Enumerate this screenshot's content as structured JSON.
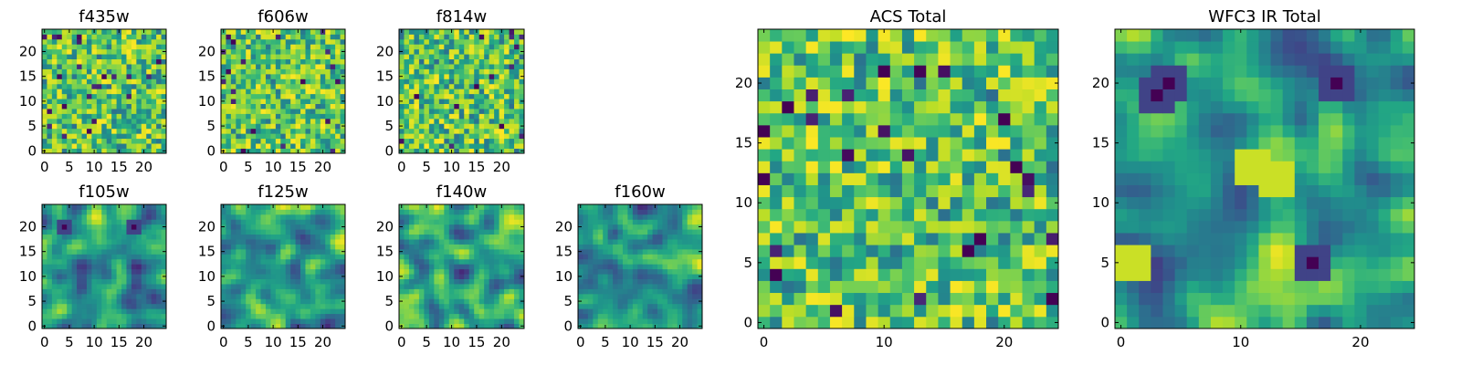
{
  "figure": {
    "colormap": "viridis",
    "panel_order": [
      "f435w",
      "f606w",
      "f814w",
      "f105w",
      "f125w",
      "f140w",
      "f160w",
      "ACS Total",
      "WFC3 IR Total"
    ]
  },
  "chart_data": [
    {
      "type": "heatmap",
      "title": "f435w",
      "grid": [
        25,
        25
      ],
      "xlim": [
        -0.5,
        24.5
      ],
      "ylim": [
        -0.5,
        24.5
      ],
      "xticks": [
        0,
        5,
        10,
        15,
        20
      ],
      "yticks": [
        0,
        5,
        10,
        15,
        20
      ],
      "colormap": "viridis",
      "pattern": "uncorrelated noise"
    },
    {
      "type": "heatmap",
      "title": "f606w",
      "grid": [
        25,
        25
      ],
      "xlim": [
        -0.5,
        24.5
      ],
      "ylim": [
        -0.5,
        24.5
      ],
      "xticks": [
        0,
        5,
        10,
        15,
        20
      ],
      "yticks": [
        0,
        5,
        10,
        15,
        20
      ],
      "colormap": "viridis",
      "pattern": "uncorrelated noise"
    },
    {
      "type": "heatmap",
      "title": "f814w",
      "grid": [
        25,
        25
      ],
      "xlim": [
        -0.5,
        24.5
      ],
      "ylim": [
        -0.5,
        24.5
      ],
      "xticks": [
        0,
        5,
        10,
        15,
        20
      ],
      "yticks": [
        0,
        5,
        10,
        15,
        20
      ],
      "colormap": "viridis",
      "pattern": "uncorrelated noise"
    },
    {
      "type": "heatmap",
      "title": "f105w",
      "grid": [
        25,
        25
      ],
      "xlim": [
        -0.5,
        24.5
      ],
      "ylim": [
        -0.5,
        24.5
      ],
      "xticks": [
        0,
        5,
        10,
        15,
        20
      ],
      "yticks": [
        0,
        5,
        10,
        15,
        20
      ],
      "colormap": "viridis",
      "pattern": "correlated noise",
      "low_regions": [
        [
          4,
          20
        ],
        [
          18,
          20
        ]
      ]
    },
    {
      "type": "heatmap",
      "title": "f125w",
      "grid": [
        25,
        25
      ],
      "xlim": [
        -0.5,
        24.5
      ],
      "ylim": [
        -0.5,
        24.5
      ],
      "xticks": [
        0,
        5,
        10,
        15,
        20
      ],
      "yticks": [
        0,
        5,
        10,
        15,
        20
      ],
      "colormap": "viridis",
      "pattern": "correlated noise"
    },
    {
      "type": "heatmap",
      "title": "f140w",
      "grid": [
        25,
        25
      ],
      "xlim": [
        -0.5,
        24.5
      ],
      "ylim": [
        -0.5,
        24.5
      ],
      "xticks": [
        0,
        5,
        10,
        15,
        20
      ],
      "yticks": [
        0,
        5,
        10,
        15,
        20
      ],
      "colormap": "viridis",
      "pattern": "correlated noise"
    },
    {
      "type": "heatmap",
      "title": "f160w",
      "grid": [
        25,
        25
      ],
      "xlim": [
        -0.5,
        24.5
      ],
      "ylim": [
        -0.5,
        24.5
      ],
      "xticks": [
        0,
        5,
        10,
        15,
        20
      ],
      "yticks": [
        0,
        5,
        10,
        15,
        20
      ],
      "colormap": "viridis",
      "pattern": "correlated noise"
    },
    {
      "type": "heatmap",
      "title": "ACS Total",
      "grid": [
        25,
        25
      ],
      "xlim": [
        -0.5,
        24.5
      ],
      "ylim": [
        -0.5,
        24.5
      ],
      "xticks": [
        0,
        10,
        20
      ],
      "yticks": [
        0,
        5,
        10,
        15,
        20
      ],
      "colormap": "viridis",
      "pattern": "uncorrelated noise",
      "low_cells": [
        [
          0,
          16
        ],
        [
          2,
          18
        ],
        [
          0,
          12
        ],
        [
          1,
          4
        ],
        [
          17,
          6
        ],
        [
          24,
          2
        ],
        [
          20,
          17
        ],
        [
          21,
          13
        ],
        [
          10,
          21
        ]
      ]
    },
    {
      "type": "heatmap",
      "title": "WFC3 IR Total",
      "grid": [
        25,
        25
      ],
      "xlim": [
        -0.5,
        24.5
      ],
      "ylim": [
        -0.5,
        24.5
      ],
      "xticks": [
        0,
        10,
        20
      ],
      "yticks": [
        0,
        5,
        10,
        15,
        20
      ],
      "colormap": "viridis",
      "pattern": "correlated noise",
      "low_regions": [
        [
          4,
          20
        ],
        [
          3,
          19
        ],
        [
          18,
          20
        ],
        [
          16,
          5
        ]
      ],
      "high_regions": [
        [
          11,
          13
        ],
        [
          13,
          12
        ],
        [
          1,
          5
        ]
      ]
    }
  ]
}
